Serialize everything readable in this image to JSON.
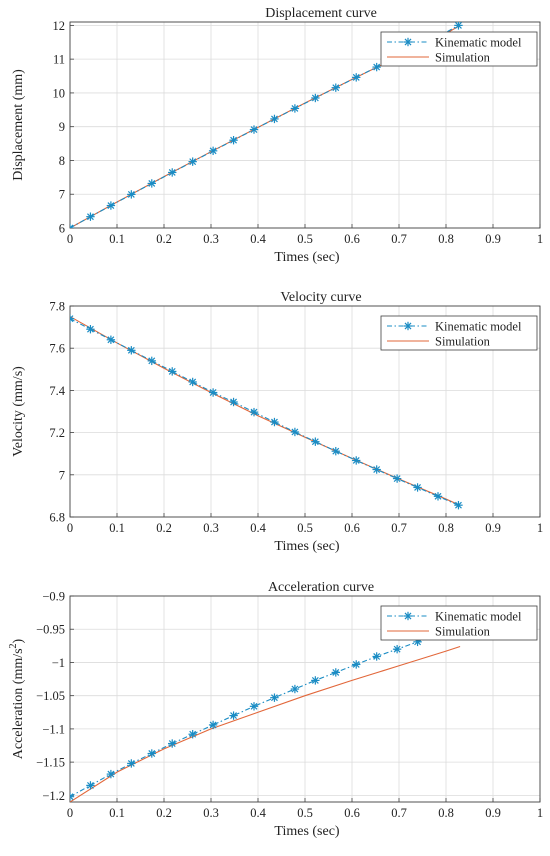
{
  "figure": {
    "colors": {
      "kinematic": "#1a8cc4",
      "simulation": "#e2673a",
      "grid": "#dcdcdc",
      "axis": "#404040"
    }
  },
  "chart_data": [
    {
      "type": "line",
      "title": "Displacement curve",
      "xlabel": "Times (sec)",
      "ylabel": "Displacement (mm)",
      "xlim": [
        0,
        1
      ],
      "ylim": [
        6,
        12.1
      ],
      "xticks": [
        "0",
        "0.1",
        "0.2",
        "0.3",
        "0.4",
        "0.5",
        "0.6",
        "0.7",
        "0.8",
        "0.9",
        "1"
      ],
      "yticks": [
        "6",
        "7",
        "8",
        "9",
        "10",
        "11",
        "12"
      ],
      "grid": true,
      "legend_position": "top-right",
      "series": [
        {
          "name": "Kinematic model",
          "marker": "asterisk",
          "line_style": "dash-dot",
          "x": [
            0,
            0.0435,
            0.087,
            0.1305,
            0.174,
            0.2175,
            0.261,
            0.3045,
            0.348,
            0.3915,
            0.435,
            0.4785,
            0.522,
            0.5655,
            0.609,
            0.6525,
            0.696,
            0.7395,
            0.783,
            0.8265
          ],
          "y": [
            6.0,
            6.335,
            6.665,
            6.995,
            7.32,
            7.645,
            7.965,
            8.285,
            8.6,
            8.915,
            9.23,
            9.54,
            9.85,
            10.155,
            10.46,
            10.765,
            11.065,
            11.36,
            11.66,
            12.0
          ]
        },
        {
          "name": "Simulation",
          "marker": "none",
          "line_style": "solid",
          "x": [
            0,
            0.1,
            0.2,
            0.3,
            0.4,
            0.5,
            0.6,
            0.7,
            0.8,
            0.83
          ],
          "y": [
            6.0,
            6.77,
            7.52,
            8.26,
            8.98,
            9.7,
            10.4,
            11.08,
            11.76,
            12.0
          ]
        }
      ]
    },
    {
      "type": "line",
      "title": "Velocity curve",
      "xlabel": "Times (sec)",
      "ylabel": "Velocity (mm/s)",
      "xlim": [
        0,
        1
      ],
      "ylim": [
        6.8,
        7.8
      ],
      "xticks": [
        "0",
        "0.1",
        "0.2",
        "0.3",
        "0.4",
        "0.5",
        "0.6",
        "0.7",
        "0.8",
        "0.9",
        "1"
      ],
      "yticks": [
        "6.8",
        "7",
        "7.2",
        "7.4",
        "7.6",
        "7.8"
      ],
      "grid": true,
      "legend_position": "top-right",
      "series": [
        {
          "name": "Kinematic model",
          "marker": "asterisk",
          "line_style": "dash-dot",
          "x": [
            0,
            0.0435,
            0.087,
            0.1305,
            0.174,
            0.2175,
            0.261,
            0.3045,
            0.348,
            0.3915,
            0.435,
            0.4785,
            0.522,
            0.5655,
            0.609,
            0.6525,
            0.696,
            0.7395,
            0.783,
            0.8265
          ],
          "y": [
            7.74,
            7.69,
            7.64,
            7.59,
            7.54,
            7.49,
            7.44,
            7.39,
            7.345,
            7.297,
            7.25,
            7.203,
            7.157,
            7.112,
            7.068,
            7.025,
            6.982,
            6.94,
            6.898,
            6.856
          ]
        },
        {
          "name": "Simulation",
          "marker": "none",
          "line_style": "solid",
          "x": [
            0,
            0.1,
            0.2,
            0.3,
            0.4,
            0.5,
            0.6,
            0.7,
            0.8,
            0.83
          ],
          "y": [
            7.75,
            7.625,
            7.505,
            7.39,
            7.28,
            7.178,
            7.078,
            6.98,
            6.885,
            6.855
          ]
        }
      ]
    },
    {
      "type": "line",
      "title": "Acceleration curve",
      "xlabel": "Times (sec)",
      "ylabel": "Acceleration (mm/s",
      "ylabel_sup": "2",
      "ylabel_close": ")",
      "xlim": [
        0,
        1
      ],
      "ylim": [
        -1.21,
        -0.9
      ],
      "xticks": [
        "0",
        "0.1",
        "0.2",
        "0.3",
        "0.4",
        "0.5",
        "0.6",
        "0.7",
        "0.8",
        "0.9",
        "1"
      ],
      "yticks": [
        "−1.2",
        "−1.15",
        "−1.1",
        "−1.05",
        "−1",
        "−0.95",
        "−0.9"
      ],
      "grid": true,
      "legend_position": "top-right",
      "series": [
        {
          "name": "Kinematic model",
          "marker": "asterisk",
          "line_style": "dash-dot",
          "x": [
            0,
            0.0435,
            0.087,
            0.1305,
            0.174,
            0.2175,
            0.261,
            0.3045,
            0.348,
            0.3915,
            0.435,
            0.4785,
            0.522,
            0.5655,
            0.609,
            0.6525,
            0.696,
            0.7395,
            0.783,
            0.8265
          ],
          "y": [
            -1.202,
            -1.185,
            -1.168,
            -1.152,
            -1.137,
            -1.122,
            -1.108,
            -1.094,
            -1.08,
            -1.066,
            -1.053,
            -1.04,
            -1.027,
            -1.015,
            -1.003,
            -0.991,
            -0.98,
            -0.969,
            -0.958,
            -0.948
          ]
        },
        {
          "name": "Simulation",
          "marker": "none",
          "line_style": "solid",
          "x": [
            0,
            0.1,
            0.2,
            0.3,
            0.4,
            0.5,
            0.6,
            0.7,
            0.8,
            0.83
          ],
          "y": [
            -1.21,
            -1.165,
            -1.13,
            -1.1,
            -1.075,
            -1.05,
            -1.027,
            -1.005,
            -0.983,
            -0.976
          ]
        }
      ]
    }
  ]
}
